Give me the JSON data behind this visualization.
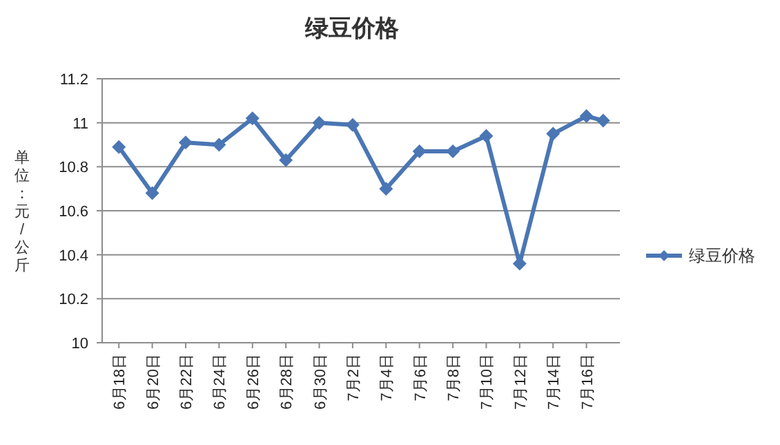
{
  "chart_data": {
    "type": "line",
    "title": "绿豆价格",
    "ylabel": "单位：元/公斤",
    "x": [
      "--06-18",
      "--06-20",
      "--06-22",
      "--06-24",
      "--06-26",
      "--06-28",
      "--06-30",
      "--07-02",
      "--07-04",
      "--07-06",
      "--07-08",
      "--07-10",
      "--07-12",
      "--07-14",
      "--07-16",
      "--07-17"
    ],
    "series": [
      {
        "name": "绿豆价格",
        "color": "#4a76b4",
        "values": [
          10.89,
          10.68,
          10.91,
          10.9,
          11.02,
          10.83,
          11.0,
          10.99,
          10.7,
          10.87,
          10.87,
          10.94,
          10.36,
          10.95,
          11.03,
          11.01
        ]
      }
    ],
    "xlim": [
      "--06-17",
      "--07-18"
    ],
    "xticks": [
      {
        "value": "--06-18",
        "label": "6月18日"
      },
      {
        "value": "--06-20",
        "label": "6月20日"
      },
      {
        "value": "--06-22",
        "label": "6月22日"
      },
      {
        "value": "--06-24",
        "label": "6月24日"
      },
      {
        "value": "--06-26",
        "label": "6月26日"
      },
      {
        "value": "--06-28",
        "label": "6月28日"
      },
      {
        "value": "--06-30",
        "label": "6月30日"
      },
      {
        "value": "--07-02",
        "label": "7月2日"
      },
      {
        "value": "--07-04",
        "label": "7月4日"
      },
      {
        "value": "--07-06",
        "label": "7月6日"
      },
      {
        "value": "--07-08",
        "label": "7月8日"
      },
      {
        "value": "--07-10",
        "label": "7月10日"
      },
      {
        "value": "--07-12",
        "label": "7月12日"
      },
      {
        "value": "--07-14",
        "label": "7月14日"
      },
      {
        "value": "--07-16",
        "label": "7月16日"
      }
    ],
    "ylim": [
      10,
      11.2
    ],
    "yticks": [
      10,
      10.2,
      10.4,
      10.6,
      10.8,
      11,
      11.2
    ],
    "grid": "y",
    "legend": "right",
    "marker": "diamond",
    "line_style": "solid"
  }
}
